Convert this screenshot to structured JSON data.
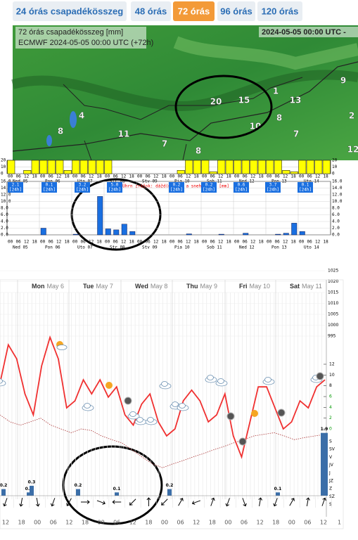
{
  "tabs": [
    "24 órás csapadékösszeg",
    "48 órás",
    "72 órás",
    "96 órás",
    "120 órás"
  ],
  "map": {
    "title": "72 órás csapadékösszeg [mm]",
    "subtitle": "ECMWF 2024-05-05 00:00 UTC (+72h)",
    "period": "2024-05-05 00:00 UTC -",
    "labels": [
      "9",
      "20",
      "15",
      "1",
      "13",
      "4",
      "8",
      "11",
      "7",
      "10",
      "8",
      "7",
      "2",
      "8",
      "12"
    ]
  },
  "strip": {
    "yticks": [
      20,
      10,
      0
    ],
    "values": [
      20,
      0,
      5,
      20,
      20,
      20,
      20,
      5,
      20,
      20,
      20,
      20,
      20,
      0,
      0,
      0,
      0,
      0,
      0,
      0,
      0,
      5,
      20,
      20,
      20,
      3,
      20,
      20,
      20,
      20,
      20,
      20,
      20,
      20,
      5,
      3,
      20,
      20,
      20,
      20
    ]
  },
  "hours": [
    "00",
    "06",
    "12",
    "18"
  ],
  "days": [
    "Ned 05",
    "Pon 06",
    "Uto 07",
    "Str 08",
    "Stv 09",
    "Pia 10",
    "Sob 11",
    "Ned 12",
    "Pon 13",
    "Uto 14"
  ],
  "precip": {
    "title": "Úhrn zrážok: dážd(modrá) a sneh(sivá) [mm]",
    "yticks": [
      {
        "value": 16,
        "label": "16.0"
      },
      {
        "value": 14,
        "label": "14.0"
      },
      {
        "value": 12,
        "label": "12.0"
      },
      {
        "value": 10,
        "label": "10.0"
      },
      {
        "value": 8,
        "label": "8.0"
      },
      {
        "value": 6,
        "label": "6.0"
      },
      {
        "value": 4,
        "label": "4.0"
      },
      {
        "value": 2,
        "label": "2.0"
      },
      {
        "value": 0,
        "label": "0.0"
      }
    ],
    "totals": [
      "2.1",
      "0.1",
      "3.2",
      "5.0",
      "0.2",
      "0.2",
      "0.6",
      "3.7",
      "0.1"
    ],
    "period": "[24h]",
    "values": [
      0,
      0,
      0,
      0,
      2.0,
      0,
      0,
      0,
      0.2,
      0,
      0,
      11.5,
      1.8,
      1.5,
      3.2,
      1.0,
      0,
      0,
      0,
      0,
      0,
      0,
      0.3,
      0,
      0,
      0,
      0.2,
      0,
      0,
      0.5,
      0,
      0,
      0,
      0.2,
      0.5,
      3.5,
      1.0,
      0,
      0,
      0
    ]
  },
  "meteogram": {
    "headers": [
      {
        "day": "Mon",
        "date": "May 6"
      },
      {
        "day": "Tue",
        "date": "May 7"
      },
      {
        "day": "Wed",
        "date": "May 8"
      },
      {
        "day": "Thu",
        "date": "May 9"
      },
      {
        "day": "Fri",
        "date": "May 10"
      },
      {
        "day": "Sat",
        "date": "May 11"
      }
    ],
    "pressure_ticks": [
      1025,
      1020,
      1015,
      1010,
      1005,
      1000,
      995
    ],
    "temp_ticks": [
      12,
      10,
      8,
      6,
      4,
      2,
      0
    ],
    "wind_labels": [
      "S",
      "SV",
      "V",
      "JV",
      "J",
      "JZ",
      "Z",
      "SZ",
      "S"
    ],
    "temperature": [
      8.5,
      15.6,
      13,
      6.5,
      2.6,
      11.7,
      17,
      13,
      3.9,
      5.2,
      9.1,
      6.5,
      9.1,
      5.9,
      7.8,
      2.6,
      0.7,
      4.6,
      6.5,
      1.3,
      -1.3,
      0,
      5.2,
      7.2,
      5.2,
      1.3,
      2.6,
      6.5,
      -1.3,
      -5.2,
      1.3,
      7.8,
      7.8,
      3.9,
      0,
      1.3,
      5.2,
      3.9,
      7.8,
      9.1
    ],
    "dewpoint": [
      2.6,
      1.3,
      0.7,
      1.3,
      2,
      0.7,
      0,
      -0.7,
      0,
      -0.3,
      -1.3,
      -2,
      -2.6,
      -3.9,
      -5.2,
      -6.5,
      -7.2,
      -6.5,
      -5.9,
      -5.2,
      -4.6,
      -3.9,
      -3.3,
      -2.6,
      -2,
      -1.3,
      -1,
      -0.7,
      -1.3,
      -2,
      -1.6,
      -1.3,
      -1
    ],
    "precip": [
      0.2,
      0.1,
      0.3,
      0.2,
      0.1,
      0.2,
      0.1,
      1.9
    ],
    "wind_dir": [
      200,
      190,
      170,
      200,
      210,
      90,
      110,
      270,
      225,
      0,
      225,
      30,
      250,
      20,
      200,
      160,
      10,
      200,
      30,
      10,
      20
    ],
    "xlabels": [
      "12",
      "18",
      "00",
      "06",
      "12",
      "18",
      "00",
      "06",
      "12",
      "18",
      "00",
      "06",
      "12",
      "18",
      "00",
      "06",
      "12",
      "18",
      "00",
      "06",
      "12",
      "1"
    ]
  }
}
